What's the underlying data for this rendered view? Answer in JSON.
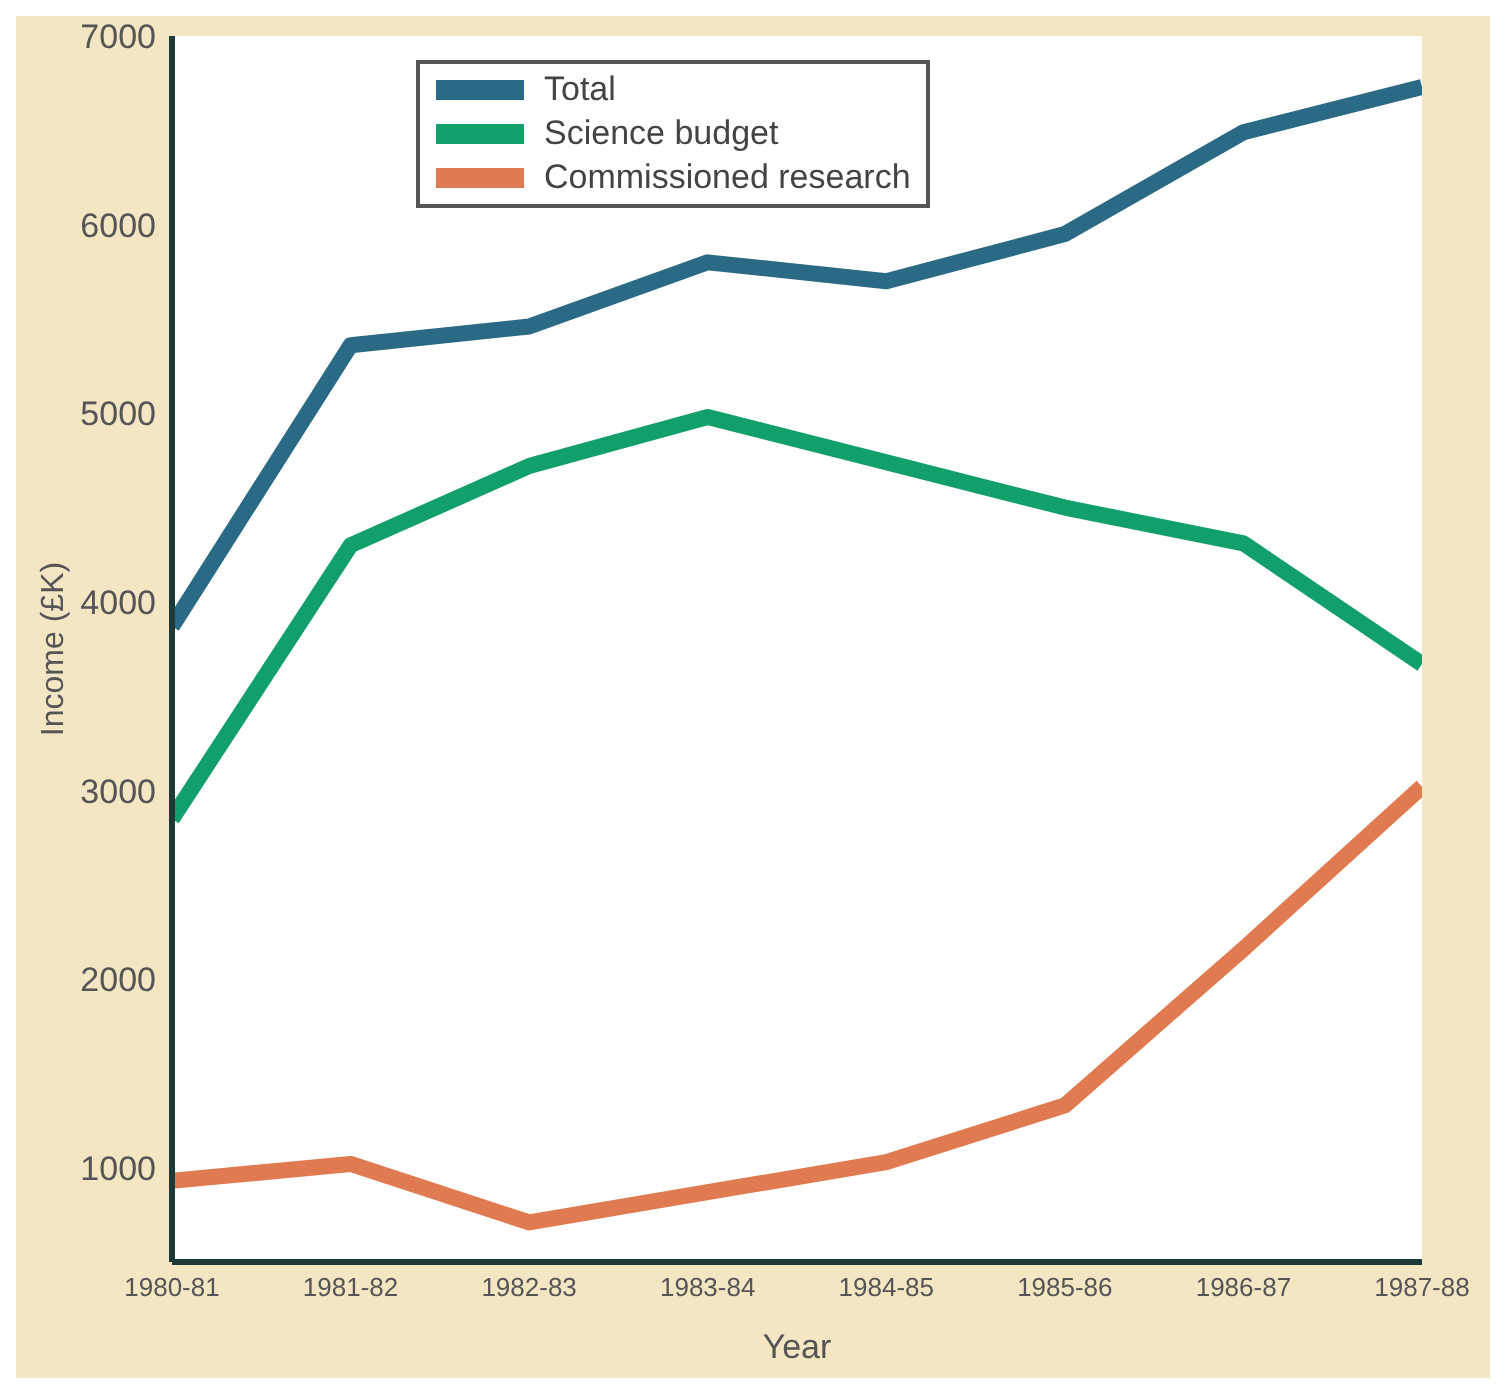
{
  "chart_data": {
    "type": "line",
    "xlabel": "Year",
    "ylabel": "Income (£K)",
    "categories": [
      "1980-81",
      "1981-82",
      "1982-83",
      "1983-84",
      "1984-85",
      "1985-86",
      "1986-87",
      "1987-88"
    ],
    "series": [
      {
        "name": "Total",
        "color": "#2a6a84",
        "values": [
          3870,
          5360,
          5460,
          5800,
          5700,
          5950,
          6490,
          6730
        ]
      },
      {
        "name": "Science budget",
        "color": "#12a06a",
        "values": [
          2850,
          4300,
          4720,
          4980,
          4740,
          4500,
          4310,
          3670
        ]
      },
      {
        "name": "Commissioned research",
        "color": "#e07a50",
        "values": [
          930,
          1020,
          710,
          870,
          1030,
          1330,
          2160,
          3020
        ]
      }
    ],
    "ylim": [
      500,
      7000
    ],
    "yticks": [
      1000,
      2000,
      3000,
      4000,
      5000,
      6000,
      7000
    ],
    "grid": false,
    "legend": "top",
    "marker": "none",
    "line_style": "solid"
  }
}
